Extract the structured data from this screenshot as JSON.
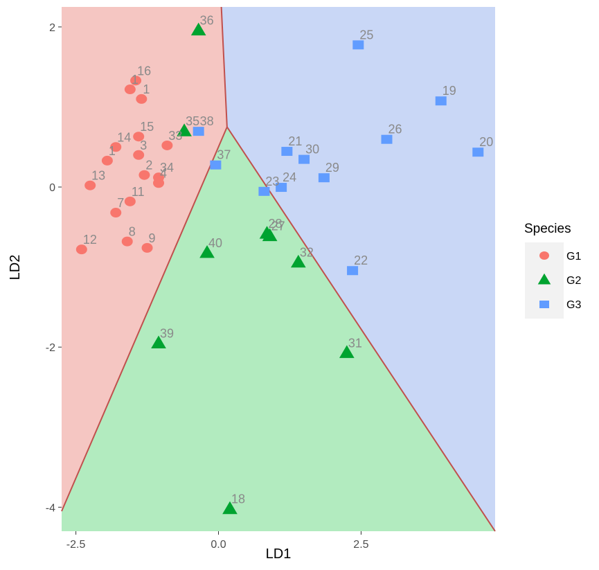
{
  "chart_data": {
    "type": "scatter",
    "xlabel": "LD1",
    "ylabel": "LD2",
    "xlim": [
      -2.75,
      4.85
    ],
    "ylim": [
      -4.3,
      2.25
    ],
    "xticks": [
      -2.5,
      0.0,
      2.5
    ],
    "xtick_labels": [
      "-2.5",
      "0.0",
      "2.5"
    ],
    "yticks": [
      2,
      0,
      -2,
      -4
    ],
    "ytick_labels": [
      "2",
      "0",
      "-2",
      "-4"
    ],
    "legend": {
      "title": "Species",
      "position": "right",
      "entries": [
        {
          "label": "G1",
          "shape": "circle",
          "color": "#f8766d"
        },
        {
          "label": "G2",
          "shape": "triangle",
          "color": "#00a330"
        },
        {
          "label": "G3",
          "shape": "square",
          "color": "#619cff"
        }
      ]
    },
    "regions": [
      {
        "group": "G1",
        "fill": "#f5c6c2",
        "vertices": [
          [
            -2.75,
            2.25
          ],
          [
            0.05,
            2.25
          ],
          [
            0.15,
            0.75
          ],
          [
            -2.75,
            -4.05
          ]
        ]
      },
      {
        "group": "G2",
        "fill": "#b2ebbf",
        "vertices": [
          [
            -2.75,
            -4.05
          ],
          [
            0.15,
            0.75
          ],
          [
            4.85,
            -4.3
          ],
          [
            -2.75,
            -4.3
          ]
        ]
      },
      {
        "group": "G3",
        "fill": "#c9d7f6",
        "vertices": [
          [
            0.05,
            2.25
          ],
          [
            4.85,
            2.25
          ],
          [
            4.85,
            -4.3
          ],
          [
            0.15,
            0.75
          ]
        ]
      }
    ],
    "boundary_color": "#c0504d",
    "series": [
      {
        "name": "G1",
        "points": [
          {
            "label": "16",
            "x": -1.45,
            "y": 1.33
          },
          {
            "label": "1",
            "x": -1.55,
            "y": 1.22
          },
          {
            "label": "1",
            "x": -1.35,
            "y": 1.1
          },
          {
            "label": "15",
            "x": -1.4,
            "y": 0.63
          },
          {
            "label": "14",
            "x": -1.8,
            "y": 0.5
          },
          {
            "label": "3",
            "x": -1.4,
            "y": 0.4
          },
          {
            "label": "1",
            "x": -1.95,
            "y": 0.33
          },
          {
            "label": "33",
            "x": -0.9,
            "y": 0.52
          },
          {
            "label": "2",
            "x": -1.3,
            "y": 0.15
          },
          {
            "label": "34",
            "x": -1.05,
            "y": 0.12
          },
          {
            "label": "4",
            "x": -1.05,
            "y": 0.05
          },
          {
            "label": "13",
            "x": -2.25,
            "y": 0.02
          },
          {
            "label": "11",
            "x": -1.55,
            "y": -0.18
          },
          {
            "label": "7",
            "x": -1.8,
            "y": -0.32
          },
          {
            "label": "8",
            "x": -1.6,
            "y": -0.68
          },
          {
            "label": "9",
            "x": -1.25,
            "y": -0.76
          },
          {
            "label": "12",
            "x": -2.4,
            "y": -0.78
          }
        ]
      },
      {
        "name": "G2",
        "points": [
          {
            "label": "36",
            "x": -0.35,
            "y": 1.96
          },
          {
            "label": "35",
            "x": -0.6,
            "y": 0.7
          },
          {
            "label": "28",
            "x": 0.85,
            "y": -0.58
          },
          {
            "label": "27",
            "x": 0.9,
            "y": -0.61
          },
          {
            "label": "40",
            "x": -0.2,
            "y": -0.82
          },
          {
            "label": "32",
            "x": 1.4,
            "y": -0.94
          },
          {
            "label": "39",
            "x": -1.05,
            "y": -1.95
          },
          {
            "label": "31",
            "x": 2.25,
            "y": -2.07
          },
          {
            "label": "18",
            "x": 0.2,
            "y": -4.02
          }
        ]
      },
      {
        "name": "G3",
        "points": [
          {
            "label": "25",
            "x": 2.45,
            "y": 1.78
          },
          {
            "label": "19",
            "x": 3.9,
            "y": 1.08
          },
          {
            "label": "38",
            "x": -0.35,
            "y": 0.7
          },
          {
            "label": "26",
            "x": 2.95,
            "y": 0.6
          },
          {
            "label": "20",
            "x": 4.55,
            "y": 0.44
          },
          {
            "label": "21",
            "x": 1.2,
            "y": 0.45
          },
          {
            "label": "30",
            "x": 1.5,
            "y": 0.35
          },
          {
            "label": "37",
            "x": -0.05,
            "y": 0.28
          },
          {
            "label": "29",
            "x": 1.85,
            "y": 0.12
          },
          {
            "label": "23",
            "x": 0.8,
            "y": -0.05
          },
          {
            "label": "24",
            "x": 1.1,
            "y": 0.0
          },
          {
            "label": "22",
            "x": 2.35,
            "y": -1.04
          }
        ]
      }
    ]
  }
}
